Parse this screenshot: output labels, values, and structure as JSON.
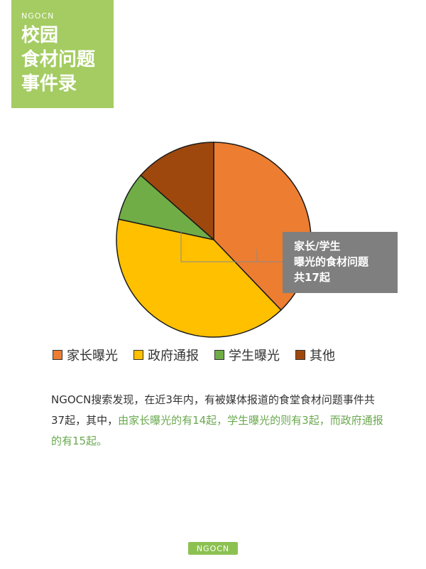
{
  "header": {
    "brand": "NGOCN",
    "title_lines": [
      "校园",
      "食材问题",
      "事件录"
    ]
  },
  "chart_data": {
    "type": "pie",
    "title": "",
    "categories": [
      "家长曝光",
      "政府通报",
      "学生曝光",
      "其他"
    ],
    "values": [
      14,
      15,
      3,
      5
    ],
    "total": 37,
    "colors": [
      "#ed7d31",
      "#ffc000",
      "#70ad47",
      "#9e480e"
    ],
    "legend_position": "bottom",
    "annotation": [
      "家长/学生",
      "曝光的食材问题",
      "共17起"
    ]
  },
  "description": {
    "part1": "NGOCN搜索发现，在近3年内，有被媒体报道的食堂食材问题事件共37起，其中，",
    "part2": "由家长曝光的有14起，学生曝光的则有3起，而政府通报的有15起。"
  },
  "footer": {
    "logo": "NGOCN"
  }
}
